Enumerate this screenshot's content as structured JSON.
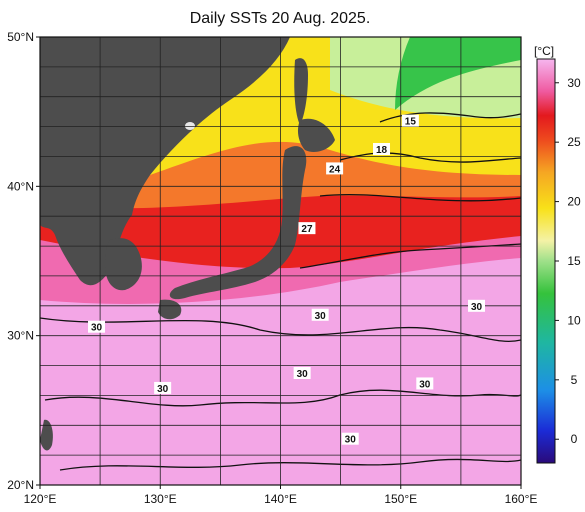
{
  "title": "Daily SSTs 20 Aug. 2025.",
  "colorbar": {
    "unit": "[°C]",
    "ticks": [
      {
        "value": 30,
        "label": "30"
      },
      {
        "value": 25,
        "label": "25"
      },
      {
        "value": 20,
        "label": "20"
      },
      {
        "value": 15,
        "label": "15"
      },
      {
        "value": 10,
        "label": "10"
      },
      {
        "value": 5,
        "label": "5"
      },
      {
        "value": 0,
        "label": "0"
      }
    ],
    "range": [
      -2,
      32
    ]
  },
  "axes": {
    "lon_range": [
      120,
      160
    ],
    "lat_range": [
      20,
      50
    ],
    "x_ticks": [
      {
        "value": 120,
        "label": "120°E"
      },
      {
        "value": 130,
        "label": "130°E"
      },
      {
        "value": 140,
        "label": "140°E"
      },
      {
        "value": 150,
        "label": "150°E"
      },
      {
        "value": 160,
        "label": "160°E"
      }
    ],
    "y_ticks": [
      {
        "value": 50,
        "label": "50°N"
      },
      {
        "value": 40,
        "label": "40°N"
      },
      {
        "value": 30,
        "label": "30°N"
      },
      {
        "value": 20,
        "label": "20°N"
      }
    ],
    "grid": true
  },
  "contour_labels": [
    {
      "text": "15",
      "lon": 150.8,
      "lat": 44.4
    },
    {
      "text": "18",
      "lon": 148.4,
      "lat": 42.5
    },
    {
      "text": "24",
      "lon": 144.5,
      "lat": 41.2
    },
    {
      "text": "27",
      "lon": 142.2,
      "lat": 37.2
    },
    {
      "text": "30",
      "lon": 143.3,
      "lat": 31.4
    },
    {
      "text": "30",
      "lon": 156.3,
      "lat": 32.0
    },
    {
      "text": "30",
      "lon": 124.7,
      "lat": 30.6
    },
    {
      "text": "30",
      "lon": 141.8,
      "lat": 27.5
    },
    {
      "text": "30",
      "lon": 152.0,
      "lat": 26.8
    },
    {
      "text": "30",
      "lon": 130.2,
      "lat": 26.5
    },
    {
      "text": "30",
      "lon": 145.8,
      "lat": 23.1
    }
  ],
  "colors": {
    "land": "#4d4d4d",
    "warm_pink": "#f3a6e6",
    "hot_pink": "#f06ab0",
    "red": "#e8221f",
    "orange": "#f4782b",
    "yellow": "#f8e11a",
    "green": "#37c44a",
    "light_green": "#c8ef9a"
  }
}
